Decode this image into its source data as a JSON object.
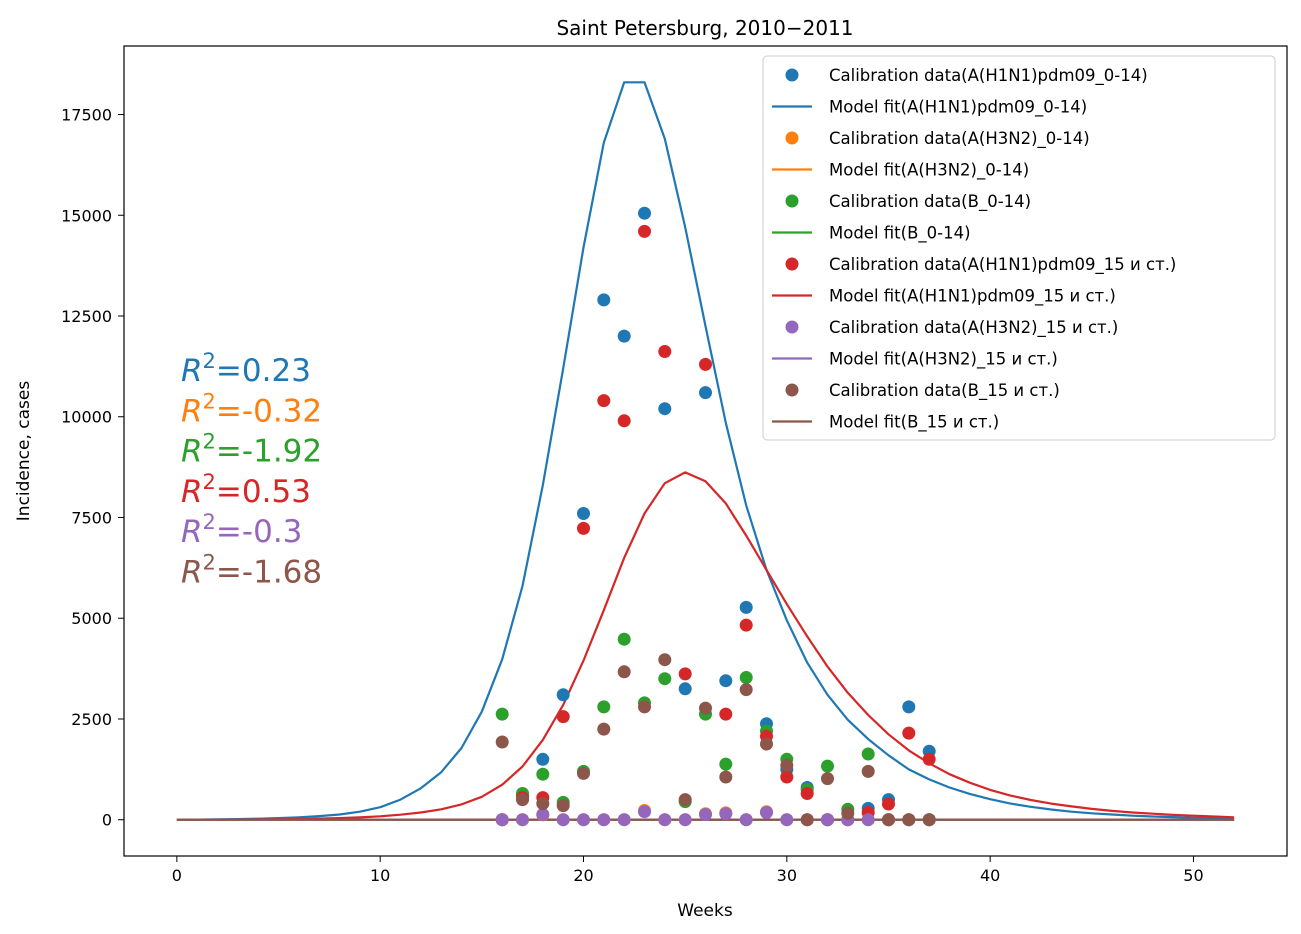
{
  "chart_data": {
    "type": "line",
    "title": "Saint Petersburg, 2010−2011",
    "xlabel": "Weeks",
    "ylabel": "Incidence, cases",
    "xlim": [
      -2.6,
      54.6
    ],
    "ylim": [
      -900,
      19200
    ],
    "xticks": [
      0,
      10,
      20,
      30,
      40,
      50
    ],
    "yticks": [
      0,
      2500,
      5000,
      7500,
      10000,
      12500,
      15000,
      17500
    ],
    "legend_position": "upper right",
    "grid": false,
    "calibration_weeks": [
      16,
      17,
      18,
      19,
      20,
      21,
      22,
      23,
      24,
      25,
      26,
      27,
      28,
      29,
      30,
      31,
      32,
      33,
      34,
      35,
      36,
      37
    ],
    "model_weeks": [
      0,
      1,
      2,
      3,
      4,
      5,
      6,
      7,
      8,
      9,
      10,
      11,
      12,
      13,
      14,
      15,
      16,
      17,
      18,
      19,
      20,
      21,
      22,
      23,
      24,
      25,
      26,
      27,
      28,
      29,
      30,
      31,
      32,
      33,
      34,
      35,
      36,
      37,
      38,
      39,
      40,
      41,
      42,
      43,
      44,
      45,
      46,
      47,
      48,
      49,
      50,
      51,
      52
    ],
    "series": [
      {
        "color": "#1f77b4",
        "legend_points": "Calibration data(A(H1N1)pdm09_0-14)",
        "legend_line": "Model fit(A(H1N1)pdm09_0-14)",
        "r2": "0.23",
        "calibration": [
          0,
          600,
          1500,
          3100,
          7600,
          12900,
          12000,
          15050,
          10200,
          3250,
          10600,
          3450,
          5270,
          2380,
          1250,
          800,
          0,
          0,
          280,
          500,
          2800,
          1700
        ],
        "model": [
          0,
          3,
          8,
          15,
          25,
          40,
          60,
          90,
          130,
          200,
          310,
          500,
          780,
          1180,
          1780,
          2680,
          3980,
          5800,
          8300,
          11200,
          14200,
          16800,
          18300,
          18300,
          16900,
          14700,
          12250,
          9850,
          7800,
          6200,
          4950,
          3900,
          3100,
          2480,
          2000,
          1600,
          1250,
          1000,
          800,
          640,
          510,
          400,
          320,
          255,
          200,
          160,
          130,
          100,
          80,
          65,
          50,
          40,
          30
        ]
      },
      {
        "color": "#ff7f0e",
        "legend_points": "Calibration data(A(H3N2)_0-14)",
        "legend_line": "Model fit(A(H3N2)_0-14)",
        "r2": "-0.32",
        "calibration": [
          0,
          0,
          120,
          0,
          0,
          0,
          0,
          230,
          0,
          0,
          150,
          170,
          0,
          200,
          0,
          0,
          0,
          0,
          0,
          0,
          0,
          0
        ],
        "model": [
          0,
          0,
          0,
          0,
          0,
          0,
          0,
          0,
          0,
          0,
          0,
          0,
          0,
          0,
          0,
          0,
          0,
          0,
          0,
          0,
          0,
          0,
          0,
          0,
          0,
          0,
          0,
          0,
          0,
          0,
          0,
          0,
          0,
          0,
          0,
          0,
          0,
          0,
          0,
          0,
          0,
          0,
          0,
          0,
          0,
          0,
          0,
          0,
          0,
          0,
          0,
          0,
          0
        ]
      },
      {
        "color": "#2ca02c",
        "legend_points": "Calibration data(B_0-14)",
        "legend_line": "Model fit(B_0-14)",
        "r2": "-1.92",
        "calibration": [
          2620,
          650,
          1130,
          430,
          1200,
          2800,
          4480,
          2900,
          3500,
          450,
          2620,
          1380,
          3530,
          2200,
          1500,
          750,
          1330,
          260,
          1630,
          0,
          0,
          0
        ],
        "model": [
          0,
          0,
          0,
          0,
          0,
          0,
          0,
          0,
          0,
          0,
          0,
          0,
          0,
          0,
          0,
          0,
          0,
          0,
          0,
          0,
          0,
          0,
          0,
          0,
          0,
          0,
          0,
          0,
          0,
          0,
          0,
          0,
          0,
          0,
          0,
          0,
          0,
          0,
          0,
          0,
          0,
          0,
          0,
          0,
          0,
          0,
          0,
          0,
          0,
          0,
          0,
          0,
          0
        ]
      },
      {
        "color": "#d62728",
        "legend_points": "Calibration data(A(H1N1)pdm09_15 и ст.)",
        "legend_line": "Model fit(A(H1N1)pdm09_15 и ст.)",
        "r2": "0.53",
        "calibration": [
          0,
          550,
          550,
          2560,
          7230,
          10400,
          9900,
          14600,
          11620,
          3620,
          11300,
          2620,
          4830,
          2070,
          1060,
          650,
          0,
          0,
          180,
          390,
          2150,
          1500
        ],
        "model": [
          0,
          2,
          3,
          5,
          8,
          12,
          18,
          27,
          40,
          58,
          85,
          125,
          180,
          260,
          380,
          570,
          870,
          1320,
          1980,
          2850,
          3950,
          5200,
          6500,
          7600,
          8350,
          8620,
          8400,
          7850,
          7050,
          6200,
          5350,
          4550,
          3800,
          3150,
          2600,
          2120,
          1720,
          1400,
          1130,
          920,
          740,
          600,
          490,
          400,
          330,
          270,
          220,
          180,
          150,
          120,
          100,
          80,
          60
        ]
      },
      {
        "color": "#9467bd",
        "legend_points": "Calibration data(A(H3N2)_15 и ст.)",
        "legend_line": "Model fit(A(H3N2)_15 и ст.)",
        "r2": "-0.3",
        "calibration": [
          0,
          0,
          130,
          0,
          0,
          0,
          0,
          200,
          0,
          0,
          130,
          150,
          0,
          180,
          0,
          0,
          0,
          0,
          0,
          0,
          0,
          0
        ],
        "model": [
          0,
          0,
          0,
          0,
          0,
          0,
          0,
          0,
          0,
          0,
          0,
          0,
          0,
          0,
          0,
          0,
          0,
          0,
          0,
          0,
          0,
          0,
          0,
          0,
          0,
          0,
          0,
          0,
          0,
          0,
          0,
          0,
          0,
          0,
          0,
          0,
          0,
          0,
          0,
          0,
          0,
          0,
          0,
          0,
          0,
          0,
          0,
          0,
          0,
          0,
          0,
          0,
          0
        ]
      },
      {
        "color": "#8c564b",
        "legend_points": "Calibration data(B_15 и ст.)",
        "legend_line": "Model fit(B_15 и ст.)",
        "r2": "-1.68",
        "calibration": [
          1930,
          500,
          400,
          350,
          1150,
          2250,
          3670,
          2800,
          3970,
          500,
          2770,
          1060,
          3230,
          1880,
          1350,
          0,
          1020,
          160,
          1200,
          0,
          0,
          0
        ],
        "model": [
          0,
          0,
          0,
          0,
          0,
          0,
          0,
          0,
          0,
          0,
          0,
          0,
          0,
          0,
          0,
          0,
          0,
          0,
          0,
          0,
          0,
          0,
          0,
          0,
          0,
          0,
          0,
          0,
          0,
          0,
          0,
          0,
          0,
          0,
          0,
          0,
          0,
          0,
          0,
          0,
          0,
          0,
          0,
          0,
          0,
          0,
          0,
          0,
          0,
          0,
          0,
          0,
          0
        ]
      }
    ]
  }
}
